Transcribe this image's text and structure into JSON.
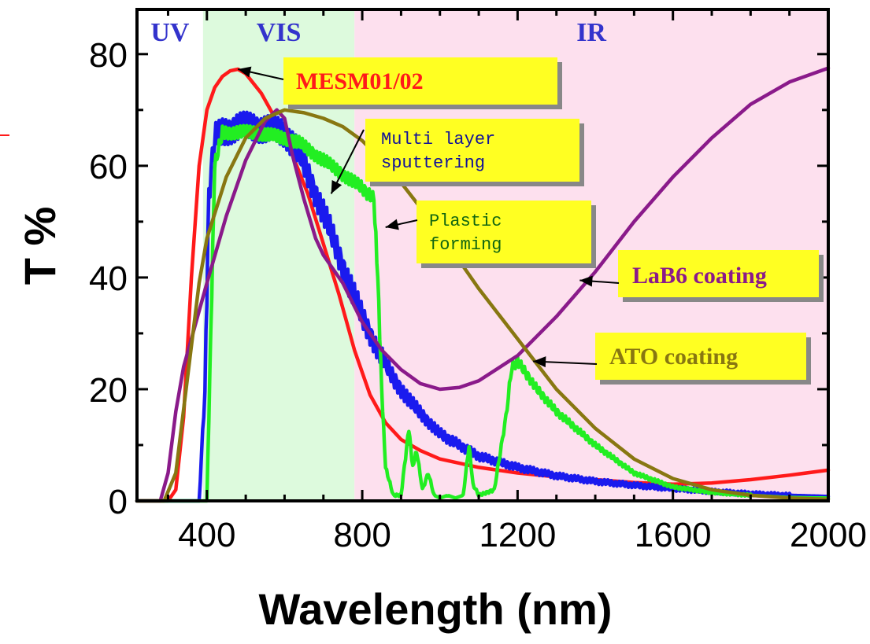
{
  "chart_data": {
    "type": "line",
    "xlabel": "Wavelength (nm)",
    "ylabel": "T %",
    "xlim": [
      220,
      2000
    ],
    "ylim": [
      0,
      88
    ],
    "xticks": [
      400,
      800,
      1200,
      1600,
      2000
    ],
    "xtick_labels": [
      "400",
      "800",
      "1200",
      "1600",
      "2000"
    ],
    "yticks": [
      0,
      20,
      40,
      60,
      80
    ],
    "ytick_labels": [
      "0",
      "20",
      "40",
      "60",
      "80"
    ],
    "grid": false,
    "legend": "none",
    "regions": [
      {
        "label": "UV",
        "from": 220,
        "to": 390,
        "color": "#ffffff"
      },
      {
        "label": "VIS",
        "from": 390,
        "to": 780,
        "color": "#ddfadd"
      },
      {
        "label": "IR",
        "from": 780,
        "to": 2000,
        "color": "#fde0ee"
      }
    ],
    "series": [
      {
        "name": "MESM01/02",
        "color": "#ff1a1a",
        "x": [
          220,
          300,
          320,
          340,
          360,
          380,
          400,
          420,
          440,
          460,
          480,
          500,
          540,
          580,
          620,
          660,
          700,
          740,
          780,
          820,
          860,
          900,
          950,
          1000,
          1100,
          1200,
          1300,
          1400,
          1500,
          1600,
          1700,
          1800,
          1900,
          2000
        ],
        "y": [
          0,
          0,
          2,
          15,
          40,
          60,
          70,
          74,
          76,
          77,
          77.3,
          76.5,
          73,
          68,
          62,
          55,
          46,
          37,
          27,
          19,
          14,
          11,
          9,
          7.5,
          6,
          5,
          4.3,
          3.8,
          3.3,
          3,
          3.2,
          3.8,
          4.6,
          5.5
        ]
      },
      {
        "name": "Multi layer sputtering",
        "color": "#1a1aee",
        "x": [
          220,
          380,
          395,
          405,
          420,
          440,
          480,
          520,
          560,
          600,
          640,
          680,
          720,
          760,
          800,
          840,
          880,
          920,
          960,
          1000,
          1100,
          1200,
          1300,
          1400,
          1500,
          1600,
          1700,
          1800,
          1900,
          2000
        ],
        "y": [
          0,
          0,
          20,
          55,
          65,
          66,
          67,
          67,
          66.5,
          66,
          62,
          55,
          48,
          40,
          33,
          27,
          22,
          18,
          15,
          12,
          8,
          6,
          4.5,
          3.5,
          2.8,
          2.2,
          1.7,
          1.3,
          1,
          0.8
        ]
      },
      {
        "name": "Plastic forming",
        "color": "#22ee22",
        "x": [
          220,
          400,
          410,
          420,
          440,
          480,
          520,
          560,
          600,
          640,
          680,
          720,
          760,
          800,
          830,
          840,
          850,
          860,
          880,
          900,
          920,
          930,
          940,
          955,
          970,
          985,
          1000,
          1020,
          1040,
          1060,
          1075,
          1085,
          1100,
          1140,
          1170,
          1185,
          1200,
          1250,
          1300,
          1400,
          1500,
          1600,
          1700,
          1800,
          1900,
          2000
        ],
        "y": [
          0,
          0,
          30,
          60,
          66,
          66,
          66,
          65.5,
          65,
          64,
          62,
          60,
          58,
          56,
          54,
          40,
          20,
          6,
          1,
          1,
          13,
          6,
          9,
          2,
          5,
          1,
          0.5,
          1,
          0.5,
          1,
          10,
          3,
          1,
          2,
          15,
          24,
          25,
          20,
          16,
          10,
          5,
          2.5,
          1.5,
          1,
          0.6,
          0.5
        ]
      },
      {
        "name": "LaB6 coating",
        "color": "#8a1a8a",
        "x": [
          220,
          280,
          300,
          320,
          340,
          360,
          380,
          400,
          450,
          500,
          550,
          580,
          600,
          620,
          650,
          680,
          700,
          750,
          800,
          850,
          900,
          950,
          1000,
          1050,
          1100,
          1200,
          1300,
          1400,
          1500,
          1600,
          1700,
          1800,
          1900,
          2000
        ],
        "y": [
          0,
          0,
          5,
          16,
          24,
          29,
          34,
          39,
          51,
          61,
          68,
          70,
          68.5,
          62,
          54,
          47,
          44,
          39,
          32,
          27,
          23.5,
          21,
          20,
          20.3,
          21.5,
          26,
          33,
          41,
          50,
          58,
          65,
          71,
          75,
          77.5
        ]
      },
      {
        "name": "ATO coating",
        "color": "#887711",
        "x": [
          220,
          290,
          320,
          350,
          380,
          400,
          450,
          500,
          550,
          600,
          650,
          700,
          750,
          800,
          850,
          900,
          1000,
          1100,
          1200,
          1300,
          1400,
          1500,
          1600,
          1700,
          1800,
          1900,
          2000
        ],
        "y": [
          0,
          0,
          5,
          22,
          39,
          47,
          58,
          65,
          68.5,
          70,
          69.5,
          68.5,
          67,
          64.5,
          61,
          57,
          48,
          38,
          29,
          20,
          13,
          7.5,
          4,
          2,
          1,
          0.5,
          0.3
        ]
      }
    ],
    "annotations": [
      {
        "text": "MESM01/02",
        "color": "#ff1a1a",
        "font": "serif",
        "size": 30,
        "box": "#ffff22",
        "arrow_to": [
          480,
          77.3
        ]
      },
      {
        "text": "Multi layer\nsputtering",
        "color": "#111199",
        "font": "mono",
        "size": 22,
        "box": "#ffff22",
        "arrow_to": [
          720,
          55
        ]
      },
      {
        "text": "Plastic\nforming",
        "color": "#116611",
        "font": "mono",
        "size": 22,
        "box": "#ffff22",
        "arrow_to": [
          860,
          49
        ]
      },
      {
        "text": "LaB6 coating",
        "color": "#8a1a8a",
        "font": "serif",
        "size": 30,
        "box": "#ffff22",
        "arrow_to": [
          1360,
          39.5
        ]
      },
      {
        "text": "ATO coating",
        "color": "#887711",
        "font": "serif",
        "size": 30,
        "box": "#ffff22",
        "arrow_to": [
          1240,
          25
        ]
      }
    ]
  }
}
